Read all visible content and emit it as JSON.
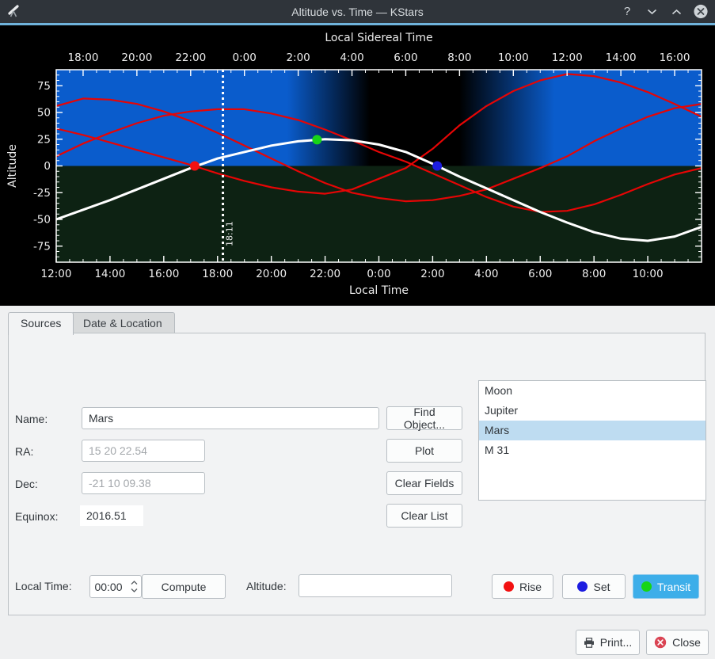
{
  "window": {
    "title": "Altitude vs. Time — KStars",
    "help_label": "?"
  },
  "chart_data": {
    "type": "line",
    "title": "Local Sidereal Time",
    "xlabel": "Local Time",
    "ylabel": "Altitude",
    "x_hours_range": [
      12,
      36
    ],
    "ylim": [
      -90,
      90
    ],
    "yticks": [
      75,
      50,
      25,
      0,
      -25,
      -50,
      -75
    ],
    "bottom_tick_hours": [
      12,
      14,
      16,
      18,
      20,
      22,
      24,
      26,
      28,
      30,
      32,
      34
    ],
    "bottom_tick_labels": [
      "12:00",
      "14:00",
      "16:00",
      "18:00",
      "20:00",
      "22:00",
      "0:00",
      "2:00",
      "4:00",
      "6:00",
      "8:00",
      "10:00"
    ],
    "top_tick_hours": [
      13,
      15,
      17,
      19,
      21,
      23,
      25,
      27,
      29,
      31,
      33,
      35
    ],
    "top_tick_labels": [
      "18:00",
      "20:00",
      "22:00",
      "0:00",
      "2:00",
      "4:00",
      "6:00",
      "8:00",
      "10:00",
      "12:00",
      "14:00",
      "16:00"
    ],
    "series": [
      {
        "name": "Moon",
        "color": "#e60505",
        "width": 2.2,
        "hours": [
          12,
          13,
          14,
          15,
          16,
          17,
          18,
          19,
          20,
          21,
          22,
          23,
          24,
          25,
          26,
          27,
          28,
          29,
          30,
          31,
          32,
          33,
          34,
          35,
          36
        ],
        "alt": [
          35,
          29,
          22,
          15,
          8,
          1,
          -7,
          -14,
          -20,
          -24,
          -26,
          -22,
          -12,
          -2,
          16,
          38,
          56,
          70,
          80,
          86,
          84,
          78,
          69,
          58,
          46
        ]
      },
      {
        "name": "Jupiter",
        "color": "#e60505",
        "width": 2.2,
        "hours": [
          12,
          13,
          14,
          15,
          16,
          17,
          18,
          19,
          20,
          21,
          22,
          23,
          24,
          25,
          26,
          27,
          28,
          29,
          30,
          31,
          32,
          33,
          34,
          35,
          36
        ],
        "alt": [
          9,
          21,
          31,
          40,
          47,
          51,
          53,
          53,
          49,
          43,
          34,
          24,
          13,
          4,
          -7,
          -18,
          -29,
          -38,
          -43,
          -42,
          -36,
          -27,
          -17,
          -8,
          -2
        ]
      },
      {
        "name": "M 31",
        "color": "#e60505",
        "width": 2.2,
        "hours": [
          12,
          13,
          14,
          15,
          16,
          17,
          18,
          19,
          20,
          21,
          22,
          23,
          24,
          25,
          26,
          27,
          28,
          29,
          30,
          31,
          32,
          33,
          34,
          35,
          36
        ],
        "alt": [
          56,
          63,
          62,
          58,
          51,
          42,
          31,
          19,
          7,
          -5,
          -16,
          -25,
          -30,
          -33,
          -32,
          -28,
          -22,
          -12,
          -2,
          9,
          23,
          35,
          46,
          54,
          58
        ]
      },
      {
        "name": "Mars",
        "color": "#ffffff",
        "width": 3,
        "hours": [
          12,
          13,
          14,
          15,
          16,
          17,
          18,
          19,
          20,
          21,
          22,
          23,
          24,
          25,
          26,
          27,
          28,
          29,
          30,
          31,
          32,
          33,
          34,
          35,
          36
        ],
        "alt": [
          -50,
          -41,
          -32,
          -22,
          -12,
          -2,
          7,
          13,
          19,
          23,
          25,
          24,
          20,
          13,
          2,
          -10,
          -21,
          -32,
          -43,
          -53,
          -62,
          -68,
          -70,
          -66,
          -57
        ]
      }
    ],
    "markers": [
      {
        "name": "rise",
        "color": "#f21111",
        "t": 17.15,
        "alt": 0
      },
      {
        "name": "transit",
        "color": "#17d517",
        "t": 21.7,
        "alt": 24.5
      },
      {
        "name": "set",
        "color": "#1d1de0",
        "t": 26.17,
        "alt": 0
      }
    ],
    "now_line": {
      "t": 18.2,
      "label": "18:11"
    },
    "sky": {
      "day_color": "#0a5ccc",
      "night_color": "#000000",
      "ground_color": "#0d2213",
      "dusk_span": [
        0.358,
        0.486
      ],
      "dawn_span": [
        0.625,
        0.772
      ]
    },
    "legend": "none",
    "grid": false
  },
  "tabs": [
    {
      "label": "Sources"
    },
    {
      "label": "Date & Location"
    }
  ],
  "form": {
    "name_label": "Name:",
    "name_value": "Mars",
    "ra_label": "RA:",
    "ra_value": "15 20 22.54",
    "dec_label": "Dec:",
    "dec_value": "-21 10 09.38",
    "equinox_label": "Equinox:",
    "equinox_value": "2016.51",
    "find_object_label": "Find Object...",
    "plot_label": "Plot",
    "clear_fields_label": "Clear Fields",
    "clear_list_label": "Clear List"
  },
  "object_list": {
    "items": [
      "Moon",
      "Jupiter",
      "Mars",
      "M 31"
    ],
    "selected_index": 2
  },
  "compute_row": {
    "local_time_label": "Local Time:",
    "local_time_value": "00:00",
    "compute_label": "Compute",
    "altitude_label": "Altitude:",
    "altitude_value": ""
  },
  "marker_buttons": {
    "rise_label": "Rise",
    "rise_color": "#f21111",
    "set_label": "Set",
    "set_color": "#1d1de0",
    "transit_label": "Transit",
    "transit_color": "#17d517"
  },
  "footer": {
    "print_label": "Print...",
    "close_label": "Close"
  }
}
